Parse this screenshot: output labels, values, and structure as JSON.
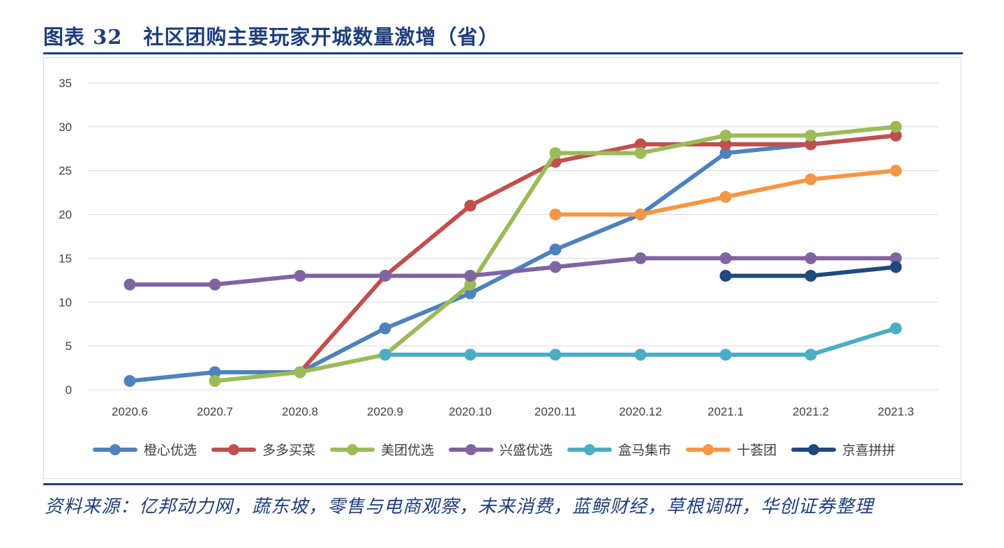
{
  "figure": {
    "number": "图表 32",
    "title": "社区团购主要玩家开城数量激增（省）",
    "source": "资料来源：亿邦动力网，蔬东坡，零售与电商观察，未来消费，蓝鲸财经，草根调研，华创证券整理"
  },
  "chart_data": {
    "type": "line",
    "x": [
      "2020.6",
      "2020.7",
      "2020.8",
      "2020.9",
      "2020.10",
      "2020.11",
      "2020.12",
      "2021.1",
      "2021.2",
      "2021.3"
    ],
    "ylim": [
      0,
      35
    ],
    "yticks": [
      0,
      5,
      10,
      15,
      20,
      25,
      30,
      35
    ],
    "grid": true,
    "legend_position": "bottom",
    "series": [
      {
        "name": "橙心优选",
        "color": "#4f81bd",
        "values": [
          1,
          2,
          2,
          7,
          11,
          16,
          20,
          27,
          28,
          29
        ]
      },
      {
        "name": "多多买菜",
        "color": "#c0504d",
        "values": [
          null,
          null,
          2,
          13,
          21,
          26,
          28,
          28,
          28,
          29
        ]
      },
      {
        "name": "美团优选",
        "color": "#9bbb59",
        "values": [
          null,
          1,
          2,
          4,
          12,
          27,
          27,
          29,
          29,
          30
        ]
      },
      {
        "name": "兴盛优选",
        "color": "#8064a2",
        "values": [
          12,
          12,
          13,
          13,
          13,
          14,
          15,
          15,
          15,
          15
        ]
      },
      {
        "name": "盒马集市",
        "color": "#4bacc6",
        "values": [
          null,
          null,
          null,
          4,
          4,
          4,
          4,
          4,
          4,
          7
        ]
      },
      {
        "name": "十荟团",
        "color": "#f79646",
        "values": [
          null,
          null,
          null,
          null,
          null,
          20,
          20,
          22,
          24,
          25
        ]
      },
      {
        "name": "京喜拼拼",
        "color": "#1f497d",
        "values": [
          null,
          null,
          null,
          null,
          null,
          null,
          null,
          13,
          13,
          14
        ]
      }
    ]
  }
}
